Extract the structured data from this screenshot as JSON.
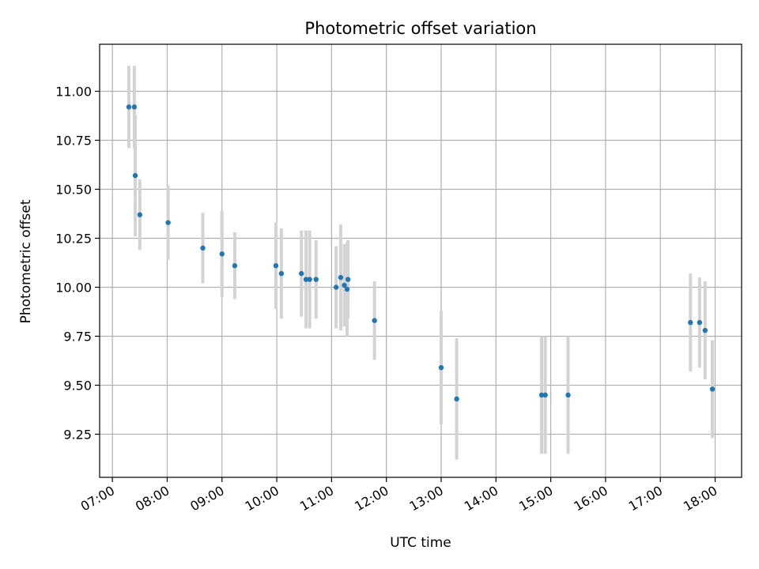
{
  "chart_data": {
    "type": "scatter",
    "title": "Photometric offset variation",
    "xlabel": "UTC time",
    "ylabel": "Photometric offset",
    "x_tick_labels": [
      "07:00",
      "08:00",
      "09:00",
      "10:00",
      "11:00",
      "12:00",
      "13:00",
      "14:00",
      "15:00",
      "16:00",
      "17:00",
      "18:00"
    ],
    "y_tick_labels": [
      "9.25",
      "9.50",
      "9.75",
      "10.00",
      "10.25",
      "10.50",
      "10.75",
      "11.00"
    ],
    "x_ticks": [
      "07:00",
      "08:00",
      "09:00",
      "10:00",
      "11:00",
      "12:00",
      "13:00",
      "14:00",
      "15:00",
      "16:00",
      "17:00",
      "18:00"
    ],
    "y_ticks": [
      9.25,
      9.5,
      9.75,
      10.0,
      10.25,
      10.5,
      10.75,
      11.0
    ],
    "xlim": [
      "06:46",
      "18:29"
    ],
    "ylim": [
      9.03,
      11.24
    ],
    "grid": true,
    "colors": {
      "points": "#1f77b4",
      "errorbars": "#d3d3d3",
      "grid": "#b0b0b0"
    },
    "points": [
      {
        "x": "07:18",
        "y": 10.92,
        "err": 0.21
      },
      {
        "x": "07:24",
        "y": 10.92,
        "err": 0.21
      },
      {
        "x": "07:25",
        "y": 10.57,
        "err": 0.31
      },
      {
        "x": "07:30",
        "y": 10.37,
        "err": 0.18
      },
      {
        "x": "08:01",
        "y": 10.33,
        "err": 0.19
      },
      {
        "x": "08:39",
        "y": 10.2,
        "err": 0.18
      },
      {
        "x": "09:00",
        "y": 10.17,
        "err": 0.22
      },
      {
        "x": "09:14",
        "y": 10.11,
        "err": 0.17
      },
      {
        "x": "09:59",
        "y": 10.11,
        "err": 0.22
      },
      {
        "x": "10:05",
        "y": 10.07,
        "err": 0.23
      },
      {
        "x": "10:27",
        "y": 10.07,
        "err": 0.22
      },
      {
        "x": "10:32",
        "y": 10.04,
        "err": 0.25
      },
      {
        "x": "10:36",
        "y": 10.04,
        "err": 0.25
      },
      {
        "x": "10:43",
        "y": 10.04,
        "err": 0.2
      },
      {
        "x": "11:05",
        "y": 10.0,
        "err": 0.21
      },
      {
        "x": "11:10",
        "y": 10.05,
        "err": 0.27
      },
      {
        "x": "11:14",
        "y": 10.01,
        "err": 0.21
      },
      {
        "x": "11:17",
        "y": 9.99,
        "err": 0.24
      },
      {
        "x": "11:18",
        "y": 10.04,
        "err": 0.2
      },
      {
        "x": "11:47",
        "y": 9.83,
        "err": 0.2
      },
      {
        "x": "13:00",
        "y": 9.59,
        "err": 0.29
      },
      {
        "x": "13:17",
        "y": 9.43,
        "err": 0.31
      },
      {
        "x": "14:50",
        "y": 9.45,
        "err": 0.3
      },
      {
        "x": "14:54",
        "y": 9.45,
        "err": 0.3
      },
      {
        "x": "15:19",
        "y": 9.45,
        "err": 0.3
      },
      {
        "x": "17:33",
        "y": 9.82,
        "err": 0.25
      },
      {
        "x": "17:43",
        "y": 9.82,
        "err": 0.23
      },
      {
        "x": "17:49",
        "y": 9.78,
        "err": 0.25
      },
      {
        "x": "17:57",
        "y": 9.48,
        "err": 0.25
      }
    ]
  }
}
